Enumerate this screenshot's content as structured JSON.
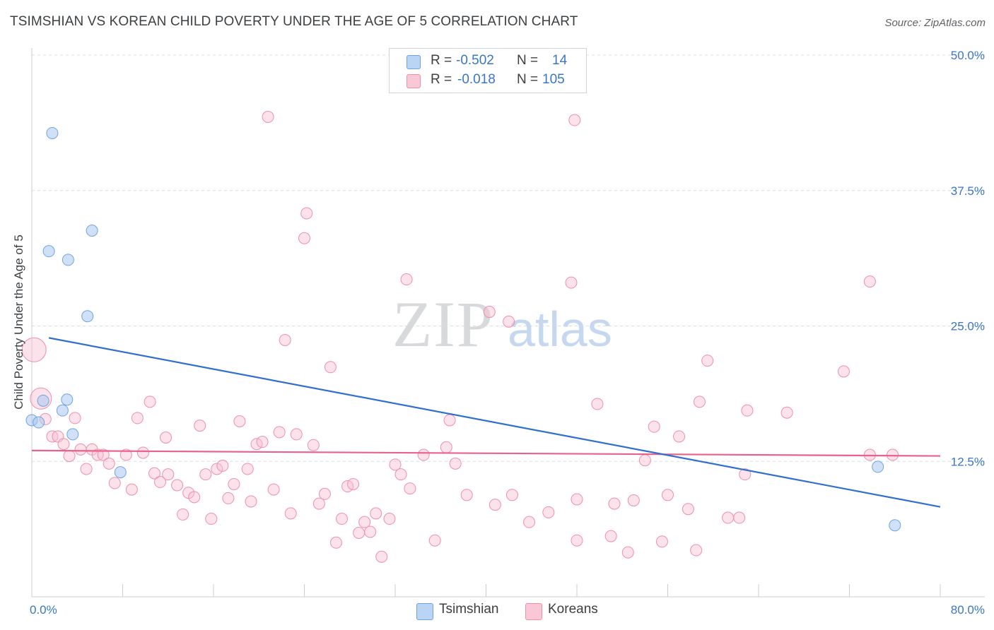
{
  "title": "TSIMSHIAN VS KOREAN CHILD POVERTY UNDER THE AGE OF 5 CORRELATION CHART",
  "source": "Source: ZipAtlas.com",
  "watermark": {
    "zip": "ZIP",
    "atlas": "atlas"
  },
  "legend": {
    "r_label": "R =",
    "n_label": "N =",
    "rows": [
      {
        "r": "-0.502",
        "n": "14",
        "color": "#b9d4f5",
        "border": "#6fa3e3"
      },
      {
        "r": "-0.018",
        "n": "105",
        "color": "#f9c7d6",
        "border": "#ee8fab"
      }
    ]
  },
  "bottom_legend": [
    {
      "label": "Tsimshian",
      "color": "#b9d4f5",
      "border": "#6fa3e3"
    },
    {
      "label": "Koreans",
      "color": "#f9c7d6",
      "border": "#ee8fab"
    }
  ],
  "colors": {
    "tsimshian_fill": "rgba(170,200,240,0.55)",
    "tsimshian_stroke": "#6fa3e3",
    "tsimshian_line": "#2f6fd0",
    "koreans_fill": "rgba(249,190,210,0.45)",
    "koreans_stroke": "#ee8fab",
    "koreans_line": "#e8628c",
    "axis_tick_text": "#3a76c4",
    "grid": "#d9dde1"
  },
  "chart_data": {
    "type": "scatter",
    "title": "TSIMSHIAN VS KOREAN CHILD POVERTY UNDER THE AGE OF 5 CORRELATION CHART",
    "xlabel": "",
    "ylabel": "Child Poverty Under the Age of 5",
    "xlim": [
      0,
      80
    ],
    "ylim": [
      0,
      50
    ],
    "x_tick_labels": [
      "0.0%",
      "80.0%"
    ],
    "y_tick_labels": [
      "12.5%",
      "25.0%",
      "37.5%",
      "50.0%"
    ],
    "y_ticks": [
      12.5,
      25.0,
      37.5,
      50.0
    ],
    "grid": true,
    "legend_position": "top-center",
    "series": [
      {
        "name": "Tsimshian",
        "r": -0.502,
        "n": 14,
        "trend": {
          "x": [
            1.5,
            80
          ],
          "y": [
            23.9,
            8.3
          ]
        },
        "points": [
          [
            0.0,
            16.3
          ],
          [
            0.6,
            16.1
          ],
          [
            1.0,
            18.1
          ],
          [
            1.5,
            31.9
          ],
          [
            1.8,
            42.8
          ],
          [
            2.7,
            17.2
          ],
          [
            3.1,
            18.2
          ],
          [
            3.2,
            31.1
          ],
          [
            3.6,
            15.0
          ],
          [
            4.9,
            25.9
          ],
          [
            5.3,
            33.8
          ],
          [
            7.8,
            11.5
          ],
          [
            74.5,
            12.0
          ],
          [
            76.0,
            6.6
          ]
        ]
      },
      {
        "name": "Koreans",
        "r": -0.018,
        "n": 105,
        "trend": {
          "x": [
            0,
            80
          ],
          "y": [
            13.5,
            13.0
          ]
        },
        "points": [
          [
            0.2,
            22.8
          ],
          [
            0.8,
            18.3
          ],
          [
            1.2,
            16.4
          ],
          [
            1.8,
            14.8
          ],
          [
            2.3,
            14.8
          ],
          [
            2.8,
            14.1
          ],
          [
            3.3,
            13.0
          ],
          [
            3.8,
            16.5
          ],
          [
            4.3,
            13.6
          ],
          [
            4.8,
            11.8
          ],
          [
            5.3,
            13.6
          ],
          [
            5.8,
            13.1
          ],
          [
            6.3,
            13.1
          ],
          [
            6.8,
            12.3
          ],
          [
            7.3,
            10.5
          ],
          [
            8.3,
            13.1
          ],
          [
            8.8,
            9.9
          ],
          [
            9.3,
            16.5
          ],
          [
            9.8,
            13.3
          ],
          [
            10.4,
            18.0
          ],
          [
            10.8,
            11.4
          ],
          [
            11.3,
            10.6
          ],
          [
            11.8,
            14.7
          ],
          [
            12.0,
            11.3
          ],
          [
            12.8,
            10.3
          ],
          [
            13.3,
            7.6
          ],
          [
            13.8,
            9.6
          ],
          [
            14.3,
            9.2
          ],
          [
            14.8,
            15.8
          ],
          [
            15.3,
            11.3
          ],
          [
            15.8,
            7.2
          ],
          [
            16.3,
            11.8
          ],
          [
            16.8,
            12.1
          ],
          [
            17.3,
            9.1
          ],
          [
            17.8,
            10.4
          ],
          [
            18.3,
            16.2
          ],
          [
            19.0,
            11.8
          ],
          [
            19.3,
            8.8
          ],
          [
            19.8,
            14.1
          ],
          [
            20.3,
            14.3
          ],
          [
            20.8,
            44.3
          ],
          [
            21.3,
            9.9
          ],
          [
            21.8,
            15.2
          ],
          [
            22.3,
            23.7
          ],
          [
            22.8,
            7.7
          ],
          [
            23.3,
            15.0
          ],
          [
            24.0,
            33.1
          ],
          [
            24.2,
            35.4
          ],
          [
            24.8,
            14.0
          ],
          [
            25.3,
            8.6
          ],
          [
            25.8,
            9.5
          ],
          [
            26.3,
            21.2
          ],
          [
            26.8,
            5.0
          ],
          [
            27.3,
            7.2
          ],
          [
            27.8,
            10.2
          ],
          [
            28.3,
            10.4
          ],
          [
            28.8,
            5.9
          ],
          [
            29.3,
            6.9
          ],
          [
            29.8,
            6.0
          ],
          [
            30.3,
            7.7
          ],
          [
            30.8,
            3.7
          ],
          [
            31.5,
            7.2
          ],
          [
            32.0,
            12.2
          ],
          [
            32.5,
            11.3
          ],
          [
            33.0,
            29.3
          ],
          [
            33.3,
            10.0
          ],
          [
            34.5,
            13.1
          ],
          [
            35.5,
            5.2
          ],
          [
            36.5,
            13.8
          ],
          [
            36.8,
            16.3
          ],
          [
            37.3,
            12.3
          ],
          [
            38.3,
            9.4
          ],
          [
            40.3,
            26.3
          ],
          [
            40.8,
            8.5
          ],
          [
            42.0,
            25.4
          ],
          [
            42.3,
            9.4
          ],
          [
            43.8,
            6.9
          ],
          [
            45.5,
            7.8
          ],
          [
            47.5,
            29.0
          ],
          [
            47.8,
            44.0
          ],
          [
            48.0,
            9.0
          ],
          [
            48.0,
            5.2
          ],
          [
            49.8,
            17.8
          ],
          [
            51.0,
            5.6
          ],
          [
            51.3,
            8.6
          ],
          [
            52.5,
            4.1
          ],
          [
            53.0,
            8.9
          ],
          [
            54.0,
            12.6
          ],
          [
            54.8,
            15.7
          ],
          [
            55.5,
            5.1
          ],
          [
            56.0,
            9.4
          ],
          [
            57.0,
            14.8
          ],
          [
            57.8,
            8.1
          ],
          [
            58.5,
            4.3
          ],
          [
            58.8,
            18.0
          ],
          [
            59.5,
            21.8
          ],
          [
            61.3,
            7.3
          ],
          [
            62.3,
            7.3
          ],
          [
            62.8,
            11.3
          ],
          [
            63.0,
            17.2
          ],
          [
            66.5,
            17.0
          ],
          [
            73.8,
            29.1
          ],
          [
            73.8,
            13.1
          ],
          [
            75.8,
            13.1
          ],
          [
            71.5,
            20.8
          ]
        ]
      }
    ]
  }
}
